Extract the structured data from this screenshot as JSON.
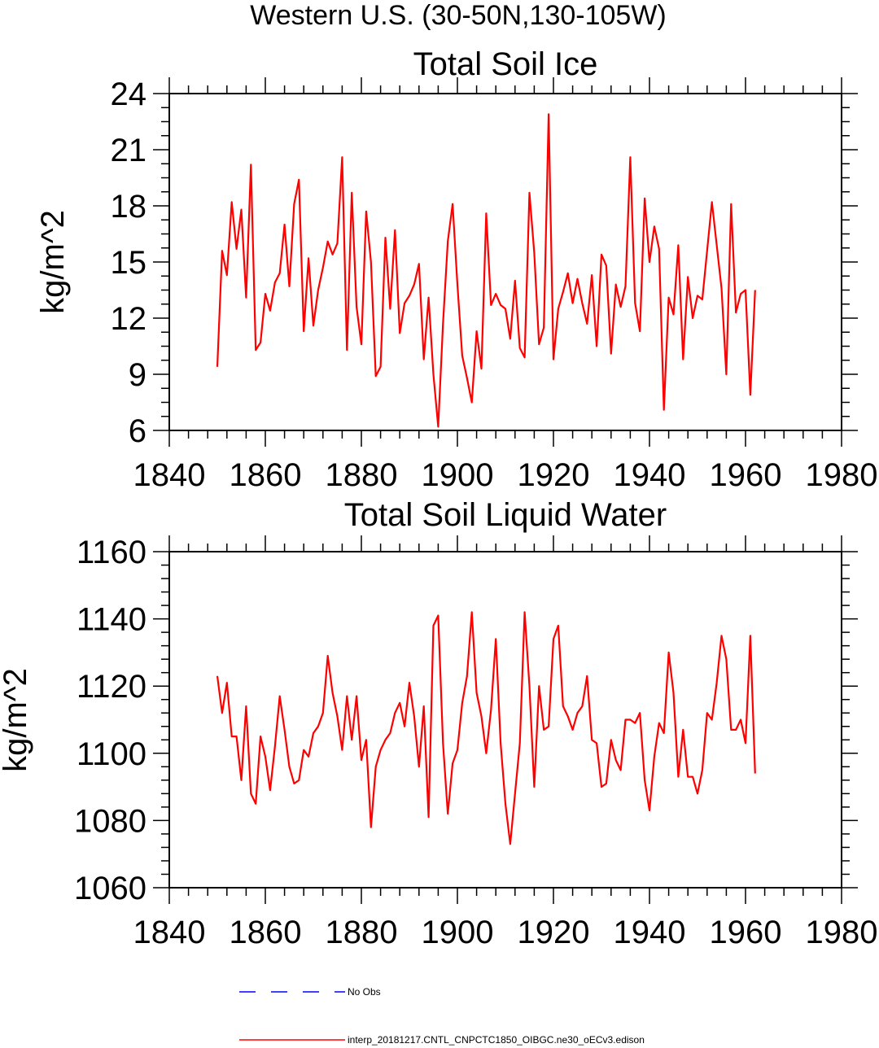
{
  "figure_title": "Western U.S. (30-50N,130-105W)",
  "chart_data": [
    {
      "type": "line",
      "title": "Total Soil Ice",
      "ylabel": "kg/m^2",
      "xlabel": "",
      "xlim": [
        1840,
        1980
      ],
      "ylim": [
        6,
        24
      ],
      "xticks": [
        1840,
        1860,
        1880,
        1900,
        1920,
        1940,
        1960,
        1980
      ],
      "yticks": [
        6,
        9,
        12,
        15,
        18,
        21,
        24
      ],
      "x_start": 1850,
      "series": [
        {
          "name": "interp_20181217.CNTL_CNPCTC1850_OIBGC.ne30_oECv3.edison",
          "color": "#ff0000",
          "values": [
            9.4,
            15.6,
            14.3,
            18.2,
            15.7,
            17.8,
            13.1,
            20.2,
            10.3,
            10.7,
            13.3,
            12.4,
            13.9,
            14.4,
            17.0,
            13.7,
            18.1,
            19.4,
            11.3,
            15.2,
            11.6,
            13.5,
            14.7,
            16.1,
            15.4,
            16.0,
            20.6,
            10.3,
            18.7,
            12.6,
            10.6,
            17.7,
            15.0,
            8.9,
            9.4,
            16.3,
            12.5,
            16.7,
            11.2,
            12.8,
            13.2,
            13.8,
            14.9,
            9.8,
            13.1,
            9.0,
            6.2,
            11.7,
            16.1,
            18.1,
            13.8,
            10.0,
            8.8,
            7.5,
            11.3,
            9.3,
            17.6,
            12.7,
            13.3,
            12.7,
            12.5,
            10.9,
            14.0,
            10.4,
            9.9,
            18.7,
            15.5,
            10.6,
            11.5,
            22.9,
            9.8,
            12.5,
            13.4,
            14.4,
            12.8,
            14.1,
            12.8,
            11.7,
            14.3,
            10.5,
            15.4,
            14.8,
            10.1,
            13.8,
            12.6,
            13.7,
            20.6,
            12.8,
            11.3,
            18.4,
            15.0,
            16.9,
            15.7,
            7.1,
            13.1,
            12.2,
            15.9,
            9.8,
            14.2,
            12.0,
            13.2,
            13.0,
            15.6,
            18.2,
            15.9,
            13.6,
            9.0,
            18.1,
            12.3,
            13.3,
            13.5,
            7.9,
            13.5
          ]
        }
      ]
    },
    {
      "type": "line",
      "title": "Total Soil Liquid Water",
      "ylabel": "kg/m^2",
      "xlabel": "",
      "xlim": [
        1840,
        1980
      ],
      "ylim": [
        1060,
        1160
      ],
      "xticks": [
        1840,
        1860,
        1880,
        1900,
        1920,
        1940,
        1960,
        1980
      ],
      "yticks": [
        1060,
        1080,
        1100,
        1120,
        1140,
        1160
      ],
      "x_start": 1850,
      "series": [
        {
          "name": "interp_20181217.CNTL_CNPCTC1850_OIBGC.ne30_oECv3.edison",
          "color": "#ff0000",
          "values": [
            1123,
            1112,
            1121,
            1105,
            1105,
            1092,
            1114,
            1088,
            1085,
            1105,
            1099,
            1089,
            1102,
            1117,
            1107,
            1096,
            1091,
            1092,
            1101,
            1099,
            1106,
            1108,
            1112,
            1129,
            1118,
            1111,
            1101,
            1117,
            1104,
            1117,
            1098,
            1104,
            1078,
            1096,
            1101,
            1104,
            1106,
            1112,
            1115,
            1108,
            1121,
            1111,
            1096,
            1114,
            1081,
            1138,
            1141,
            1103,
            1082,
            1097,
            1101,
            1115,
            1123,
            1142,
            1118,
            1111,
            1100,
            1113,
            1134,
            1103,
            1085,
            1073,
            1088,
            1103,
            1142,
            1120,
            1090,
            1120,
            1107,
            1108,
            1134,
            1138,
            1114,
            1111,
            1107,
            1112,
            1114,
            1123,
            1104,
            1103,
            1090,
            1091,
            1104,
            1098,
            1095,
            1110,
            1110,
            1109,
            1112,
            1092,
            1083,
            1099,
            1109,
            1106,
            1130,
            1118,
            1093,
            1107,
            1093,
            1093,
            1088,
            1095,
            1112,
            1110,
            1121,
            1135,
            1128,
            1107,
            1107,
            1110,
            1103,
            1135,
            1094
          ]
        }
      ]
    }
  ],
  "legend": [
    {
      "label": "No Obs",
      "color": "#0000ff",
      "style": "dashed"
    },
    {
      "label": "interp_20181217.CNTL_CNPCTC1850_OIBGC.ne30_oECv3.edison",
      "color": "#ff0000",
      "style": "solid"
    }
  ]
}
